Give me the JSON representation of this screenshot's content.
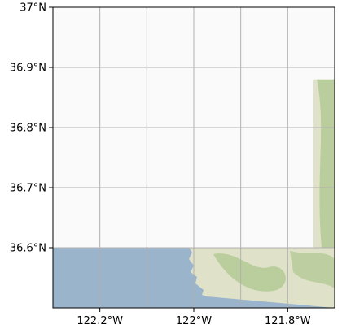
{
  "map": {
    "projection": "plate-carree",
    "extent": {
      "lon_min": -122.3,
      "lon_max": -121.7,
      "lat_min": 36.5,
      "lat_max": 37.0
    },
    "gridlines": true,
    "background_color": "#fafafa",
    "grid_color": "#b0b0b0",
    "water_color": "#9ab4cc",
    "land_color": "#dfe2c8",
    "vegetation_color": "#aac48a",
    "tile_area": {
      "lat_min": 36.5,
      "lat_max": 36.6,
      "lon_min": -122.3,
      "lon_max": -121.7
    },
    "tile_strip": {
      "lat_min": 36.6,
      "lat_max": 36.88,
      "lon_min": -121.745,
      "lon_max": -121.7
    },
    "x_ticks": [
      {
        "value": -122.2,
        "label": "122.2°W"
      },
      {
        "value": -122.0,
        "label": "122°W"
      },
      {
        "value": -121.8,
        "label": "121.8°W"
      }
    ],
    "x_gridlines": [
      -122.2,
      -122.1,
      -122.0,
      -121.9,
      -121.8,
      -121.7
    ],
    "y_ticks": [
      {
        "value": 37.0,
        "label": "37°N"
      },
      {
        "value": 36.9,
        "label": "36.9°N"
      },
      {
        "value": 36.8,
        "label": "36.8°N"
      },
      {
        "value": 36.7,
        "label": "36.7°N"
      },
      {
        "value": 36.6,
        "label": "36.6°N"
      }
    ]
  }
}
